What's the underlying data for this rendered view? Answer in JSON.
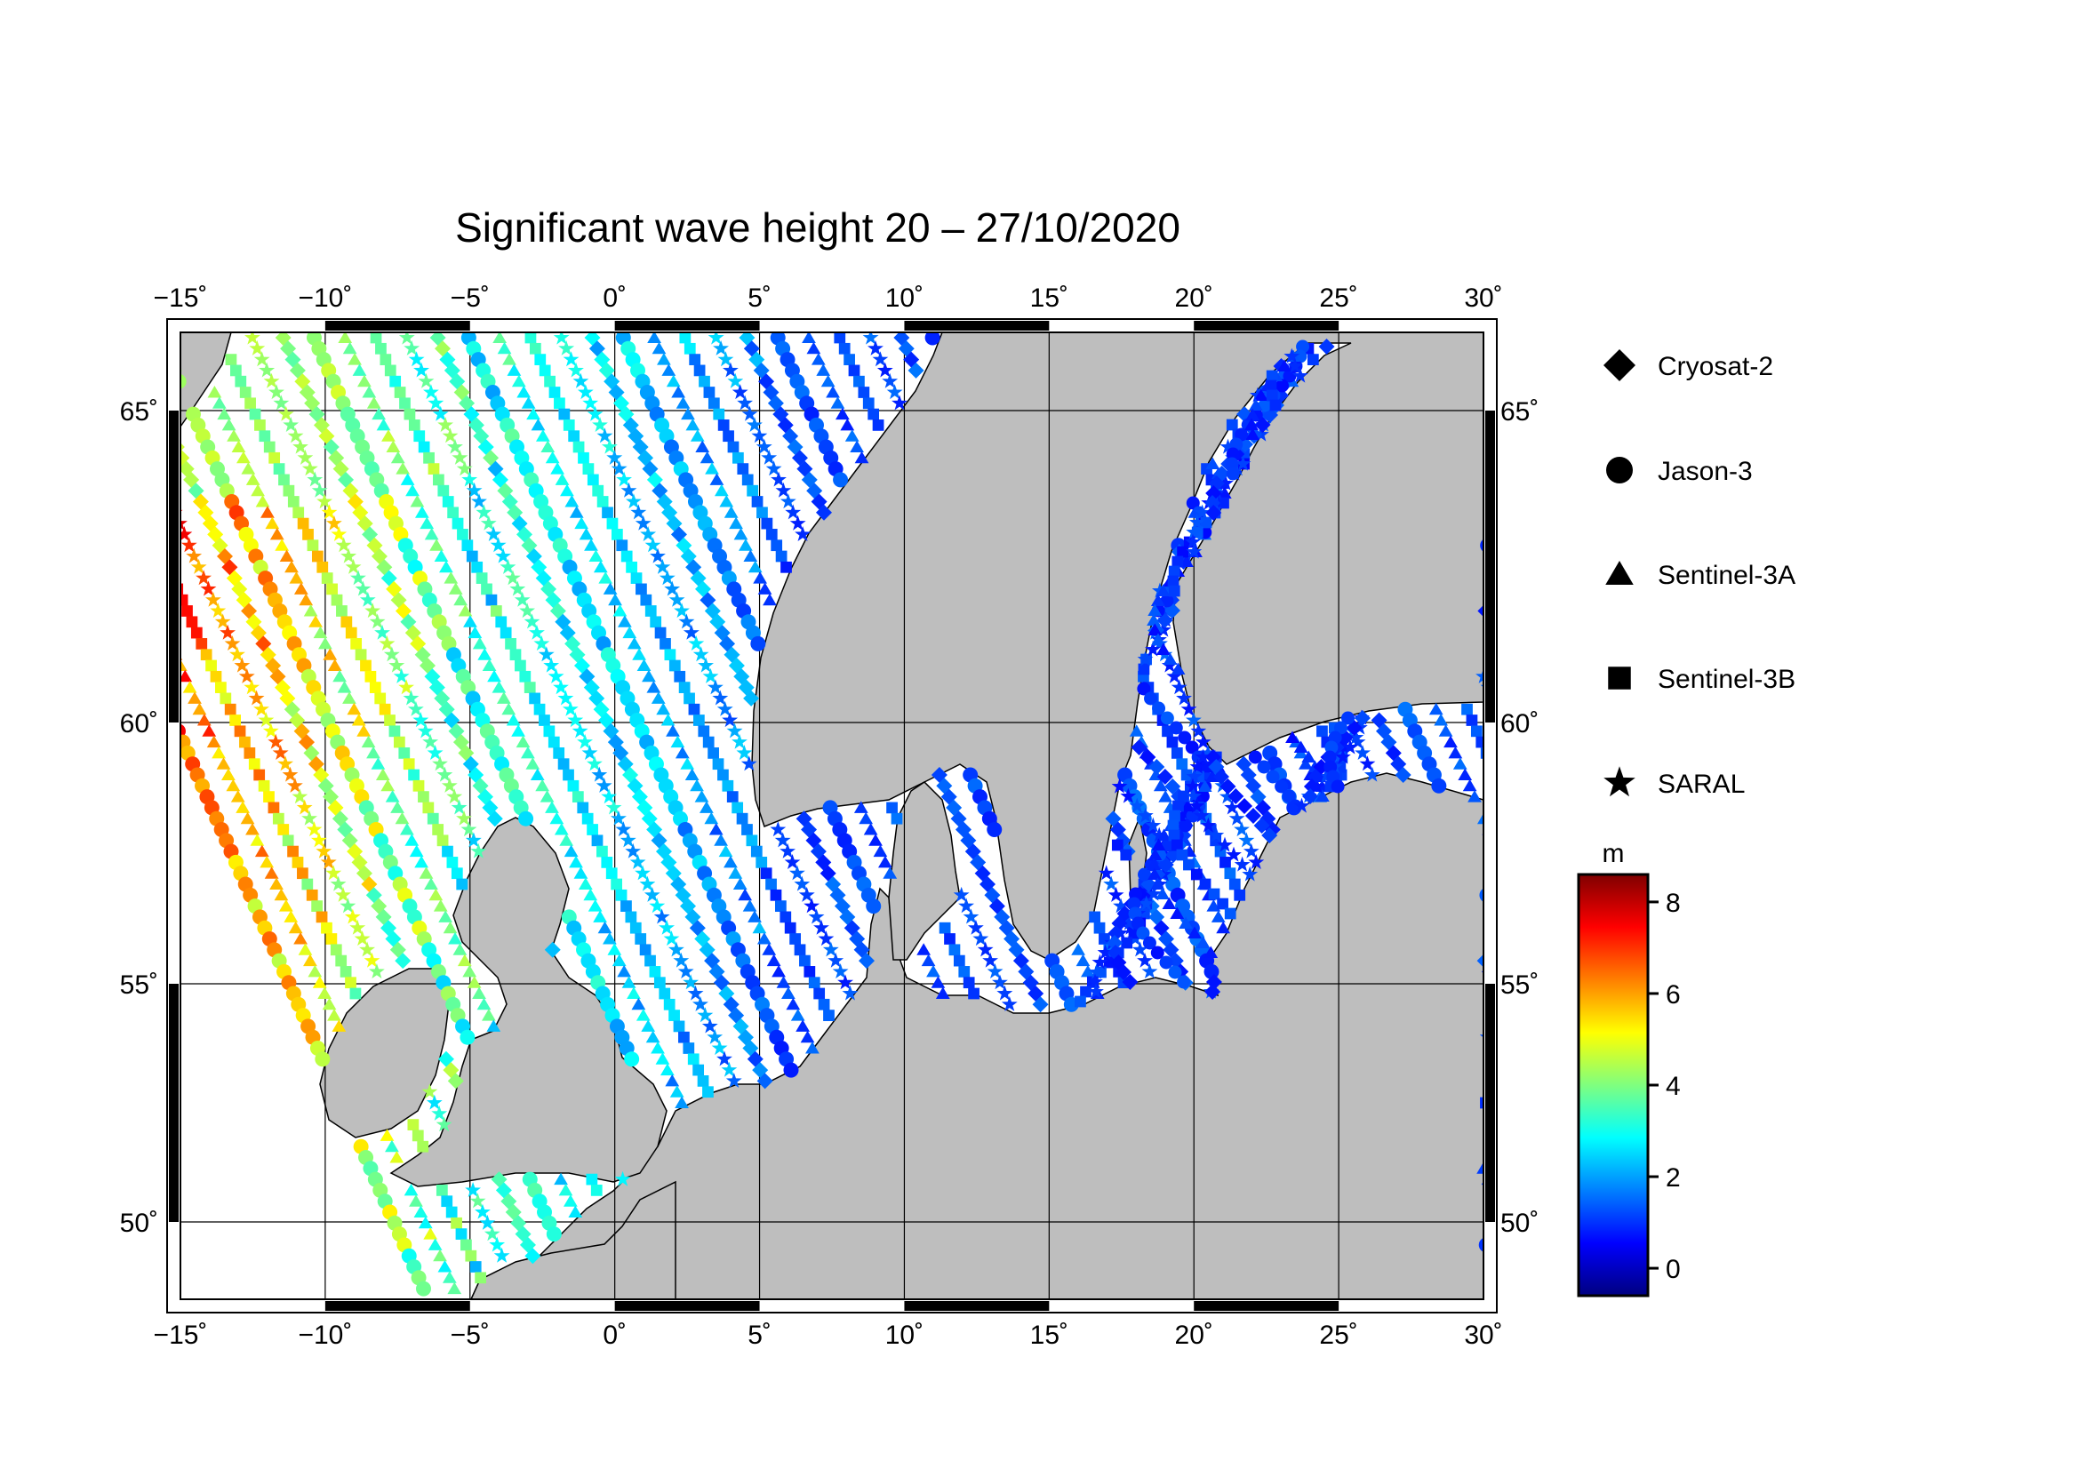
{
  "title": "Significant wave height 20 – 27/10/2020",
  "map": {
    "lon_range": [
      -15,
      30
    ],
    "lat_range": [
      48.5,
      66.5
    ],
    "grid_lons": [
      -15,
      -10,
      -5,
      0,
      5,
      10,
      15,
      20,
      25,
      30
    ],
    "grid_lats": [
      50,
      55,
      60,
      65
    ],
    "lon_tick_labels": [
      "−15˚",
      "−10˚",
      "−5˚",
      "0˚",
      "5˚",
      "10˚",
      "15˚",
      "20˚",
      "25˚",
      "30˚"
    ],
    "lat_tick_labels": [
      "50˚",
      "55˚",
      "60˚",
      "65˚"
    ],
    "land_color": "#bebebe",
    "sea_color": "#ffffff"
  },
  "legend": {
    "items": [
      {
        "label": "Cryosat-2",
        "symbol": "diamond"
      },
      {
        "label": "Jason-3",
        "symbol": "circle"
      },
      {
        "label": "Sentinel-3A",
        "symbol": "triangle"
      },
      {
        "label": "Sentinel-3B",
        "symbol": "square"
      },
      {
        "label": "SARAL",
        "symbol": "star"
      }
    ]
  },
  "colorbar": {
    "unit": "m",
    "min": -0.6,
    "max": 8.6,
    "ticks": [
      0,
      2,
      4,
      6,
      8
    ],
    "tick_labels": [
      "0",
      "2",
      "4",
      "6",
      "8"
    ],
    "colors": [
      "#00007f",
      "#0000ff",
      "#007fff",
      "#00ffff",
      "#7fff7f",
      "#ffff00",
      "#ff7f00",
      "#ff0000",
      "#7f0000"
    ]
  }
}
